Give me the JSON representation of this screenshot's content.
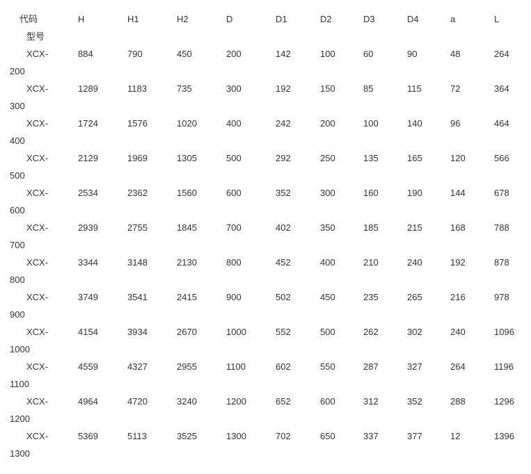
{
  "table": {
    "header_first_line1": "代码",
    "header_first_line2": "型号",
    "columns": [
      "H",
      "H1",
      "H2",
      "D",
      "D1",
      "D2",
      "D3",
      "D4",
      "a",
      "L"
    ],
    "rows": [
      {
        "model": "XCX-200",
        "values": [
          "884",
          "790",
          "450",
          "200",
          "142",
          "100",
          "60",
          "90",
          "48",
          "264"
        ]
      },
      {
        "model": "XCX-300",
        "values": [
          "1289",
          "1183",
          "735",
          "300",
          "192",
          "150",
          "85",
          "115",
          "72",
          "364"
        ]
      },
      {
        "model": "XCX-400",
        "values": [
          "1724",
          "1576",
          "1020",
          "400",
          "242",
          "200",
          "100",
          "140",
          "96",
          "464"
        ]
      },
      {
        "model": "XCX-500",
        "values": [
          "2129",
          "1969",
          "1305",
          "500",
          "292",
          "250",
          "135",
          "165",
          "120",
          "566"
        ]
      },
      {
        "model": "XCX-600",
        "values": [
          "2534",
          "2362",
          "1560",
          "600",
          "352",
          "300",
          "160",
          "190",
          "144",
          "678"
        ]
      },
      {
        "model": "XCX-700",
        "values": [
          "2939",
          "2755",
          "1845",
          "700",
          "402",
          "350",
          "185",
          "215",
          "168",
          "788"
        ]
      },
      {
        "model": "XCX-800",
        "values": [
          "3344",
          "3148",
          "2130",
          "800",
          "452",
          "400",
          "210",
          "240",
          "192",
          "878"
        ]
      },
      {
        "model": "XCX-900",
        "values": [
          "3749",
          "3541",
          "2415",
          "900",
          "502",
          "450",
          "235",
          "265",
          "216",
          "978"
        ]
      },
      {
        "model": "XCX-1000",
        "values": [
          "4154",
          "3934",
          "2670",
          "1000",
          "552",
          "500",
          "262",
          "302",
          "240",
          "1096"
        ]
      },
      {
        "model": "XCX-1100",
        "values": [
          "4559",
          "4327",
          "2955",
          "1100",
          "602",
          "550",
          "287",
          "327",
          "264",
          "1196"
        ]
      },
      {
        "model": "XCX-1200",
        "values": [
          "4964",
          "4720",
          "3240",
          "1200",
          "652",
          "600",
          "312",
          "352",
          "288",
          "1296"
        ]
      },
      {
        "model": "XCX-1300",
        "values": [
          "5369",
          "5113",
          "3525",
          "1300",
          "702",
          "650",
          "337",
          "377",
          "12",
          "1396"
        ]
      }
    ]
  }
}
